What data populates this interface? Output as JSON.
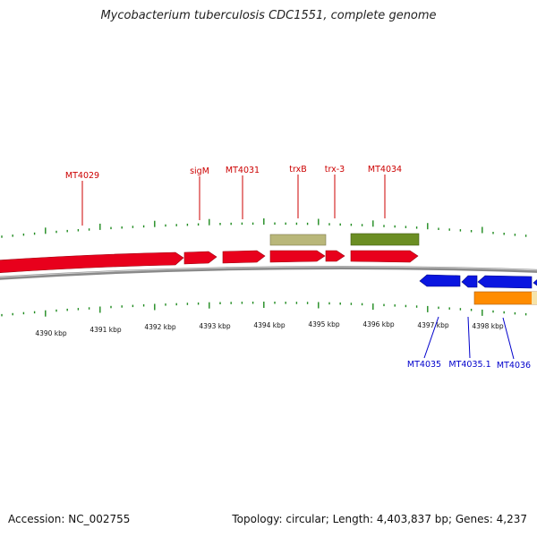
{
  "title": "Mycobacterium tuberculosis CDC1551, complete genome",
  "footer": {
    "accession": "Accession: NC_002755",
    "summary": "Topology: circular; Length: 4,403,837 bp; Genes: 4,237"
  },
  "colors": {
    "forward_gene": "#e8001c",
    "reverse_gene": "#0a16e0",
    "forward_label": "#cc0000",
    "reverse_label": "#0000cc",
    "trna_tan": "#b9b77a",
    "rrna_olive": "#6b8e23",
    "orange_feature": "#ff8c00",
    "tick_green": "#1e8a1e",
    "backbone": "#8a8a8a"
  },
  "kbp_ticks": [
    "4390 kbp",
    "4391 kbp",
    "4392 kbp",
    "4393 kbp",
    "4394 kbp",
    "4395 kbp",
    "4396 kbp",
    "4397 kbp",
    "4398 kbp"
  ],
  "forward_labels": [
    "MT4029",
    "sigM",
    "MT4031",
    "trxB",
    "trx-3",
    "MT4034"
  ],
  "reverse_labels": [
    "MT4035",
    "MT4035.1",
    "MT4036"
  ]
}
